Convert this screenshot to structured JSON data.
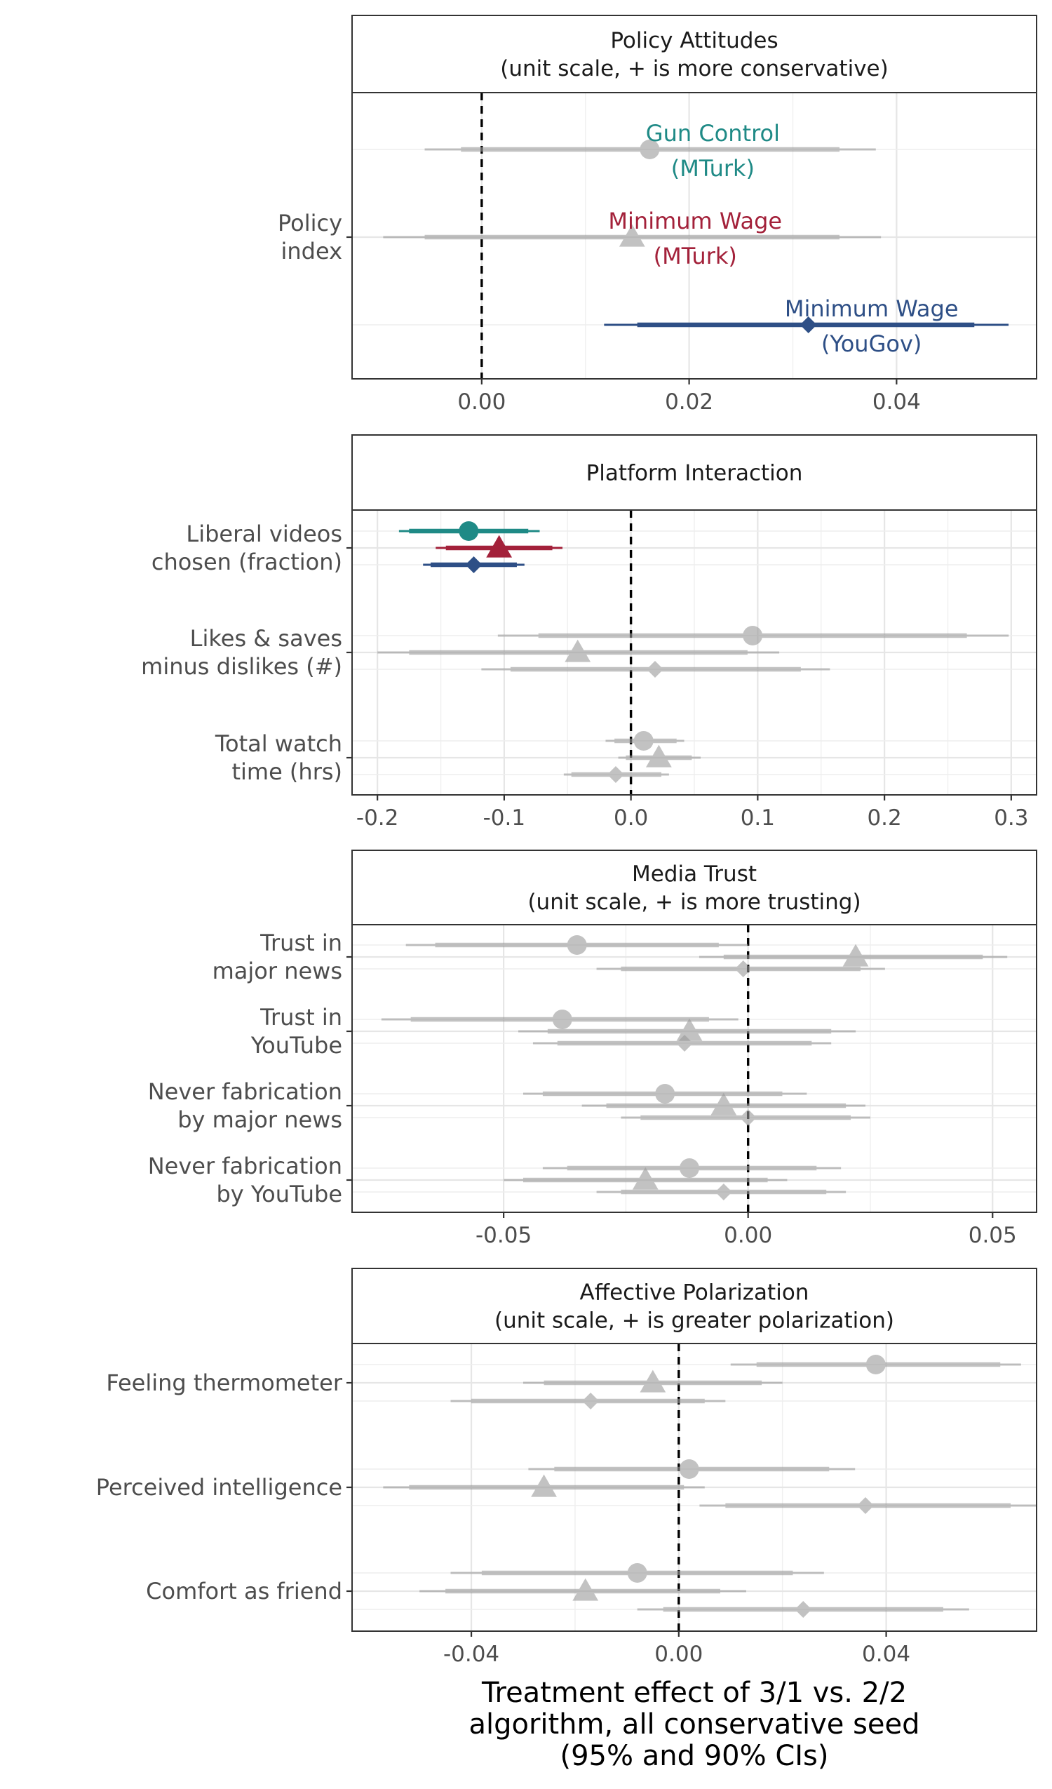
{
  "xlabel": [
    "Treatment effect of 3/1 vs. 2/2",
    "algorithm, all conservative seed",
    "(95% and 90% CIs)"
  ],
  "colors": {
    "MTurk_gun": "#1f8a86",
    "MTurk_wage": "#a3213a",
    "YouGov": "#2e4f86",
    "insig": "#9a9a9a"
  },
  "chart_data": [
    {
      "type": "forest",
      "title": [
        "Policy Attitudes",
        "(unit scale, + is more conservative)"
      ],
      "xlim": [
        -0.0125,
        0.0535
      ],
      "xticks": [
        0.0,
        0.02,
        0.04
      ],
      "xtick_labels": [
        "0.00",
        "0.02",
        "0.04"
      ],
      "vline": 0,
      "rows": [
        {
          "label": [
            "Policy",
            "index"
          ],
          "estimates": [
            {
              "sample": "MTurk_gun",
              "marker": "circle",
              "significant": false,
              "est": 0.0162,
              "ci90": [
                -0.002,
                0.0345
              ],
              "ci95": [
                -0.0055,
                0.038
              ],
              "annotation": [
                "Gun Control",
                "(MTurk)"
              ]
            },
            {
              "sample": "MTurk_wage",
              "marker": "triangle",
              "significant": false,
              "est": 0.0145,
              "ci90": [
                -0.0055,
                0.0345
              ],
              "ci95": [
                -0.0095,
                0.0385
              ],
              "annotation": [
                "Minimum Wage",
                "(MTurk)"
              ]
            },
            {
              "sample": "YouGov",
              "marker": "diamond",
              "significant": true,
              "est": 0.0315,
              "ci90": [
                0.015,
                0.0475
              ],
              "ci95": [
                0.0118,
                0.0508
              ],
              "annotation": [
                "Minimum Wage",
                "(YouGov)"
              ]
            }
          ]
        }
      ]
    },
    {
      "type": "forest",
      "title": [
        "Platform Interaction"
      ],
      "xlim": [
        -0.22,
        0.32
      ],
      "xticks": [
        -0.2,
        -0.1,
        0.0,
        0.1,
        0.2,
        0.3
      ],
      "xtick_labels": [
        "-0.2",
        "-0.1",
        "0.0",
        "0.1",
        "0.2",
        "0.3"
      ],
      "vline": 0,
      "rows": [
        {
          "label": [
            "Liberal videos",
            "chosen (fraction)"
          ],
          "estimates": [
            {
              "sample": "MTurk_gun",
              "marker": "circle",
              "significant": true,
              "est": -0.128,
              "ci90": [
                -0.175,
                -0.081
              ],
              "ci95": [
                -0.183,
                -0.072
              ]
            },
            {
              "sample": "MTurk_wage",
              "marker": "triangle",
              "significant": true,
              "est": -0.104,
              "ci90": [
                -0.146,
                -0.062
              ],
              "ci95": [
                -0.154,
                -0.054
              ]
            },
            {
              "sample": "YouGov",
              "marker": "diamond",
              "significant": true,
              "est": -0.124,
              "ci90": [
                -0.158,
                -0.09
              ],
              "ci95": [
                -0.164,
                -0.084
              ]
            }
          ]
        },
        {
          "label": [
            "Likes & saves",
            "minus dislikes (#)"
          ],
          "estimates": [
            {
              "sample": "MTurk_gun",
              "marker": "circle",
              "significant": false,
              "est": 0.096,
              "ci90": [
                -0.073,
                0.265
              ],
              "ci95": [
                -0.105,
                0.298
              ]
            },
            {
              "sample": "MTurk_wage",
              "marker": "triangle",
              "significant": false,
              "est": -0.042,
              "ci90": [
                -0.175,
                0.092
              ],
              "ci95": [
                -0.2,
                0.117
              ]
            },
            {
              "sample": "YouGov",
              "marker": "diamond",
              "significant": false,
              "est": 0.019,
              "ci90": [
                -0.095,
                0.134
              ],
              "ci95": [
                -0.118,
                0.157
              ]
            }
          ]
        },
        {
          "label": [
            "Total watch",
            "time (hrs)"
          ],
          "estimates": [
            {
              "sample": "MTurk_gun",
              "marker": "circle",
              "significant": false,
              "est": 0.01,
              "ci90": [
                -0.013,
                0.036
              ],
              "ci95": [
                -0.02,
                0.042
              ]
            },
            {
              "sample": "MTurk_wage",
              "marker": "triangle",
              "significant": false,
              "est": 0.022,
              "ci90": [
                -0.004,
                0.048
              ],
              "ci95": [
                -0.01,
                0.055
              ]
            },
            {
              "sample": "YouGov",
              "marker": "diamond",
              "significant": false,
              "est": -0.012,
              "ci90": [
                -0.047,
                0.024
              ],
              "ci95": [
                -0.053,
                0.03
              ]
            }
          ]
        }
      ]
    },
    {
      "type": "forest",
      "title": [
        "Media Trust",
        "(unit scale, + is more trusting)"
      ],
      "xlim": [
        -0.081,
        0.059
      ],
      "xticks": [
        -0.05,
        0.0,
        0.05
      ],
      "xtick_labels": [
        "-0.05",
        "0.00",
        "0.05"
      ],
      "vline": 0,
      "rows": [
        {
          "label": [
            "Trust in",
            "major news"
          ],
          "estimates": [
            {
              "sample": "MTurk_gun",
              "marker": "circle",
              "significant": false,
              "est": -0.035,
              "ci90": [
                -0.064,
                -0.006
              ],
              "ci95": [
                -0.07,
                0.0
              ]
            },
            {
              "sample": "MTurk_wage",
              "marker": "triangle",
              "significant": false,
              "est": 0.022,
              "ci90": [
                -0.005,
                0.048
              ],
              "ci95": [
                -0.01,
                0.053
              ]
            },
            {
              "sample": "YouGov",
              "marker": "diamond",
              "significant": false,
              "est": -0.001,
              "ci90": [
                -0.026,
                0.023
              ],
              "ci95": [
                -0.031,
                0.028
              ]
            }
          ]
        },
        {
          "label": [
            "Trust in",
            "YouTube"
          ],
          "estimates": [
            {
              "sample": "MTurk_gun",
              "marker": "circle",
              "significant": false,
              "est": -0.038,
              "ci90": [
                -0.069,
                -0.008
              ],
              "ci95": [
                -0.075,
                -0.002
              ]
            },
            {
              "sample": "MTurk_wage",
              "marker": "triangle",
              "significant": false,
              "est": -0.012,
              "ci90": [
                -0.041,
                0.017
              ],
              "ci95": [
                -0.047,
                0.022
              ]
            },
            {
              "sample": "YouGov",
              "marker": "diamond",
              "significant": false,
              "est": -0.013,
              "ci90": [
                -0.039,
                0.013
              ],
              "ci95": [
                -0.044,
                0.017
              ]
            }
          ]
        },
        {
          "label": [
            "Never fabrication",
            "by major news"
          ],
          "estimates": [
            {
              "sample": "MTurk_gun",
              "marker": "circle",
              "significant": false,
              "est": -0.017,
              "ci90": [
                -0.042,
                0.007
              ],
              "ci95": [
                -0.046,
                0.012
              ]
            },
            {
              "sample": "MTurk_wage",
              "marker": "triangle",
              "significant": false,
              "est": -0.005,
              "ci90": [
                -0.029,
                0.02
              ],
              "ci95": [
                -0.034,
                0.024
              ]
            },
            {
              "sample": "YouGov",
              "marker": "diamond",
              "significant": false,
              "est": 0.0,
              "ci90": [
                -0.022,
                0.021
              ],
              "ci95": [
                -0.026,
                0.025
              ]
            }
          ]
        },
        {
          "label": [
            "Never fabrication",
            "by YouTube"
          ],
          "estimates": [
            {
              "sample": "MTurk_gun",
              "marker": "circle",
              "significant": false,
              "est": -0.012,
              "ci90": [
                -0.037,
                0.014
              ],
              "ci95": [
                -0.042,
                0.019
              ]
            },
            {
              "sample": "MTurk_wage",
              "marker": "triangle",
              "significant": false,
              "est": -0.021,
              "ci90": [
                -0.046,
                0.004
              ],
              "ci95": [
                -0.05,
                0.008
              ]
            },
            {
              "sample": "YouGov",
              "marker": "diamond",
              "significant": false,
              "est": -0.005,
              "ci90": [
                -0.026,
                0.016
              ],
              "ci95": [
                -0.031,
                0.02
              ]
            }
          ]
        }
      ]
    },
    {
      "type": "forest",
      "title": [
        "Affective Polarization",
        "(unit scale, + is greater polarization)"
      ],
      "xlim": [
        -0.063,
        0.069
      ],
      "xticks": [
        -0.04,
        0.0,
        0.04
      ],
      "xtick_labels": [
        "-0.04",
        "0.00",
        "0.04"
      ],
      "vline": 0,
      "rows": [
        {
          "label": [
            "Feeling thermometer"
          ],
          "estimates": [
            {
              "sample": "MTurk_gun",
              "marker": "circle",
              "significant": false,
              "est": 0.038,
              "ci90": [
                0.015,
                0.062
              ],
              "ci95": [
                0.01,
                0.066
              ]
            },
            {
              "sample": "MTurk_wage",
              "marker": "triangle",
              "significant": false,
              "est": -0.005,
              "ci90": [
                -0.026,
                0.016
              ],
              "ci95": [
                -0.03,
                0.02
              ]
            },
            {
              "sample": "YouGov",
              "marker": "diamond",
              "significant": false,
              "est": -0.017,
              "ci90": [
                -0.04,
                0.005
              ],
              "ci95": [
                -0.044,
                0.009
              ]
            }
          ]
        },
        {
          "label": [
            "Perceived intelligence"
          ],
          "estimates": [
            {
              "sample": "MTurk_gun",
              "marker": "circle",
              "significant": false,
              "est": 0.002,
              "ci90": [
                -0.024,
                0.029
              ],
              "ci95": [
                -0.029,
                0.034
              ]
            },
            {
              "sample": "MTurk_wage",
              "marker": "triangle",
              "significant": false,
              "est": -0.026,
              "ci90": [
                -0.052,
                0.001
              ],
              "ci95": [
                -0.057,
                0.005
              ]
            },
            {
              "sample": "YouGov",
              "marker": "diamond",
              "significant": false,
              "est": 0.036,
              "ci90": [
                0.009,
                0.064
              ],
              "ci95": [
                0.004,
                0.069
              ]
            }
          ]
        },
        {
          "label": [
            "Comfort as friend"
          ],
          "estimates": [
            {
              "sample": "MTurk_gun",
              "marker": "circle",
              "significant": false,
              "est": -0.008,
              "ci90": [
                -0.038,
                0.022
              ],
              "ci95": [
                -0.044,
                0.028
              ]
            },
            {
              "sample": "MTurk_wage",
              "marker": "triangle",
              "significant": false,
              "est": -0.018,
              "ci90": [
                -0.045,
                0.008
              ],
              "ci95": [
                -0.05,
                0.013
              ]
            },
            {
              "sample": "YouGov",
              "marker": "diamond",
              "significant": false,
              "est": 0.024,
              "ci90": [
                -0.003,
                0.051
              ],
              "ci95": [
                -0.008,
                0.056
              ]
            }
          ]
        }
      ]
    }
  ]
}
